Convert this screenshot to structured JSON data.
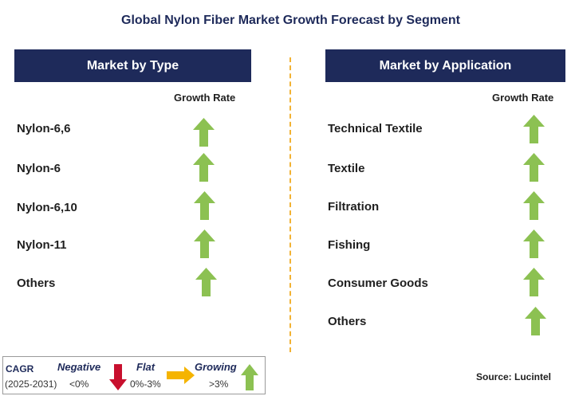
{
  "title": "Global Nylon Fiber Market Growth Forecast by Segment",
  "left_panel": {
    "header": "Market by Type",
    "growth_label": "Growth Rate",
    "items": [
      {
        "label": "Nylon-6,6",
        "trend": "growing"
      },
      {
        "label": "Nylon-6",
        "trend": "growing"
      },
      {
        "label": "Nylon-6,10",
        "trend": "growing"
      },
      {
        "label": "Nylon-11",
        "trend": "growing"
      },
      {
        "label": "Others",
        "trend": "growing"
      }
    ]
  },
  "right_panel": {
    "header": "Market by Application",
    "growth_label": "Growth Rate",
    "items": [
      {
        "label": "Technical Textile",
        "trend": "growing"
      },
      {
        "label": "Textile",
        "trend": "growing"
      },
      {
        "label": "Filtration",
        "trend": "growing"
      },
      {
        "label": "Fishing",
        "trend": "growing"
      },
      {
        "label": "Consumer Goods",
        "trend": "growing"
      },
      {
        "label": "Others",
        "trend": "growing"
      }
    ]
  },
  "legend": {
    "cagr_label": "CAGR",
    "period": "(2025-2031)",
    "negative_label": "Negative",
    "negative_range": "<0%",
    "flat_label": "Flat",
    "flat_range": "0%-3%",
    "growing_label": "Growing",
    "growing_range": ">3%"
  },
  "source": "Source: Lucintel",
  "colors": {
    "header_bg": "#1e2a5a",
    "growing": "#8cc152",
    "negative": "#c8102e",
    "flat": "#f5b400",
    "divider": "#f2b233"
  }
}
